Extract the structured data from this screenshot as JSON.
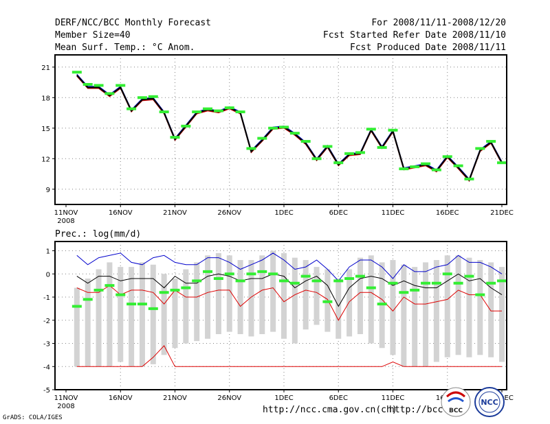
{
  "header": {
    "title": "DERF/NCC/BCC Monthly Forecast",
    "member_size": "Member Size=40",
    "variable": "Mean Surf. Temp.: °C Anom.",
    "period": "For 2008/11/11-2008/12/20",
    "started": "Fcst Started Refer Date 2008/11/10",
    "produced": "Fcst Produced Date 2008/11/11"
  },
  "footer": {
    "grads": "GrADS: COLA/IGES",
    "url1": "http://ncc.cma.gov.cn(ch)",
    "url2": "http://bcc.c"
  },
  "logos": {
    "bcc": "BCC",
    "ncc": "NCC"
  },
  "colors": {
    "grid": "#808080",
    "obs": "#33ee33",
    "upper": "#0000cc",
    "lower": "#dd0000",
    "ens": "#000000",
    "bars": "#d3d3d3"
  },
  "chart_data": [
    {
      "type": "line",
      "title": "Mean Surf. Temp.: °C Anom.",
      "x_tick_labels": [
        "11NOV",
        "16NOV",
        "21NOV",
        "26NOV",
        "1DEC",
        "6DEC",
        "11DEC",
        "16DEC",
        "21DEC"
      ],
      "x_year_label": "2008",
      "y_ticks": [
        9,
        12,
        15,
        18,
        21
      ],
      "ylim": [
        7.5,
        22.2
      ],
      "x_days": 40,
      "series": [
        {
          "name": "upper",
          "values": [
            20.3,
            19.1,
            19.1,
            18.3,
            19.1,
            16.8,
            17.9,
            18.0,
            16.6,
            14.0,
            15.3,
            16.6,
            16.9,
            16.7,
            17.1,
            16.6,
            12.8,
            13.9,
            15.1,
            15.2,
            14.5,
            13.6,
            12.0,
            13.3,
            11.5,
            12.5,
            12.6,
            14.9,
            13.2,
            14.8,
            11.1,
            11.3,
            11.5,
            10.9,
            12.3,
            11.2,
            10.0,
            12.9,
            13.7,
            11.7
          ]
        },
        {
          "name": "lower",
          "values": [
            20.1,
            18.9,
            18.9,
            18.1,
            18.9,
            16.6,
            17.7,
            17.8,
            16.4,
            13.8,
            15.1,
            16.4,
            16.7,
            16.5,
            16.9,
            16.4,
            12.6,
            13.7,
            14.9,
            15.0,
            14.3,
            13.4,
            11.8,
            13.1,
            11.3,
            12.3,
            12.4,
            14.7,
            13.0,
            14.6,
            10.9,
            11.1,
            11.3,
            10.7,
            12.1,
            11.0,
            9.8,
            12.7,
            13.5,
            11.5
          ]
        },
        {
          "name": "ensemble-mean",
          "values": [
            20.2,
            19.0,
            19.0,
            18.2,
            19.0,
            16.7,
            17.8,
            17.9,
            16.5,
            13.9,
            15.2,
            16.5,
            16.8,
            16.6,
            17.0,
            16.5,
            12.7,
            13.8,
            15.0,
            15.1,
            14.4,
            13.5,
            11.9,
            13.2,
            11.4,
            12.4,
            12.5,
            14.8,
            13.1,
            14.7,
            11.0,
            11.2,
            11.4,
            10.8,
            12.2,
            11.1,
            9.9,
            12.8,
            13.6,
            11.6
          ]
        },
        {
          "name": "observed",
          "values": [
            20.5,
            19.3,
            19.2,
            18.4,
            19.2,
            16.9,
            18.0,
            18.1,
            16.6,
            14.1,
            15.2,
            16.6,
            16.9,
            16.7,
            17.0,
            16.6,
            13.0,
            14.0,
            15.0,
            15.1,
            14.5,
            13.7,
            12.0,
            13.2,
            11.6,
            12.5,
            12.6,
            14.9,
            13.1,
            14.8,
            11.0,
            11.2,
            11.5,
            10.9,
            12.2,
            11.3,
            10.0,
            13.0,
            13.7,
            11.6
          ]
        }
      ]
    },
    {
      "type": "line",
      "title": "Prec.: log(mm/d)",
      "x_tick_labels": [
        "11NOV",
        "16NOV",
        "21NOV",
        "26NOV",
        "1DEC",
        "6DEC",
        "11DEC",
        "16DEC",
        "21DEC"
      ],
      "x_year_label": "2008",
      "y_ticks": [
        -5,
        -4,
        -3,
        -2,
        -1,
        0,
        1
      ],
      "ylim": [
        -5,
        1.4
      ],
      "x_days": 40,
      "range_bars": {
        "min": [
          -4,
          -4,
          -4,
          -4,
          -3.8,
          -4,
          -4,
          -3.9,
          -3.5,
          -3.2,
          -3,
          -2.9,
          -2.8,
          -2.6,
          -2.5,
          -2.6,
          -2.7,
          -2.6,
          -2.5,
          -2.8,
          -3,
          -2.4,
          -2.2,
          -2.5,
          -2.8,
          -2.7,
          -2.6,
          -3,
          -3.2,
          -3.5,
          -4,
          -4,
          -4,
          -3.8,
          -3.6,
          -3.5,
          -3.6,
          -3.5,
          -3.6,
          -3.8
        ],
        "max": [
          -0.6,
          -0.2,
          0.2,
          0.5,
          0.3,
          0.3,
          0.5,
          0.4,
          0,
          -0.2,
          0.2,
          0.5,
          0.8,
          0.9,
          0.8,
          0.6,
          0.6,
          0.8,
          1,
          0.9,
          0.7,
          0.6,
          0.3,
          0.2,
          -0.2,
          0.2,
          0.7,
          0.8,
          0.5,
          0.6,
          0.4,
          0.3,
          0.5,
          0.6,
          0.8,
          0.8,
          0.7,
          0.6,
          0.5,
          0.3
        ]
      },
      "series": [
        {
          "name": "upper",
          "values": [
            0.8,
            0.4,
            0.7,
            0.8,
            0.9,
            0.5,
            0.4,
            0.7,
            0.8,
            0.5,
            0.4,
            0.4,
            0.7,
            0.7,
            0.5,
            0.2,
            0.4,
            0.6,
            0.9,
            0.6,
            0.2,
            0.3,
            0.6,
            0.2,
            -0.3,
            0.3,
            0.6,
            0.6,
            0.3,
            -0.2,
            0.4,
            0.1,
            0.1,
            0.3,
            0.4,
            0.8,
            0.5,
            0.5,
            0.3,
            0
          ]
        },
        {
          "name": "ensemble-mean",
          "values": [
            -0.1,
            -0.4,
            -0.1,
            -0.1,
            -0.3,
            -0.2,
            -0.2,
            -0.2,
            -0.6,
            -0.1,
            -0.4,
            -0.4,
            -0.1,
            0,
            -0.1,
            -0.3,
            -0.2,
            -0.2,
            0,
            -0.1,
            -0.6,
            -0.3,
            -0.1,
            -0.5,
            -1.4,
            -0.6,
            -0.2,
            -0.1,
            -0.2,
            -0.5,
            -0.3,
            -0.5,
            -0.6,
            -0.6,
            -0.3,
            0,
            -0.3,
            -0.2,
            -0.6,
            -0.9
          ]
        },
        {
          "name": "lower",
          "values": [
            -0.6,
            -0.8,
            -0.8,
            -0.5,
            -0.9,
            -0.7,
            -0.7,
            -0.8,
            -1.3,
            -0.7,
            -1,
            -1,
            -0.8,
            -0.7,
            -0.7,
            -1.4,
            -1,
            -0.7,
            -0.6,
            -1.2,
            -0.9,
            -0.7,
            -0.8,
            -1.1,
            -2,
            -1.2,
            -0.8,
            -0.8,
            -1.1,
            -1.6,
            -1,
            -1.3,
            -1.3,
            -1.2,
            -1.1,
            -0.7,
            -0.9,
            -0.9,
            -1.6,
            -1.6
          ]
        },
        {
          "name": "lower-extreme",
          "values": [
            -4,
            -4,
            -4,
            -4,
            -4,
            -4,
            -4,
            -3.6,
            -3.1,
            -4,
            -4,
            -4,
            -4,
            -4,
            -4,
            -4,
            -4,
            -4,
            -4,
            -4,
            -4,
            -4,
            -4,
            -4,
            -4,
            -4,
            -4,
            -4,
            -4,
            -3.8,
            -4,
            -4,
            -4,
            -4,
            -4,
            -4,
            -4,
            -4,
            -4,
            -4
          ]
        },
        {
          "name": "observed",
          "values": [
            -1.4,
            -1.1,
            -0.7,
            -0.5,
            -0.9,
            -1.3,
            -1.3,
            -1.5,
            -0.8,
            -0.7,
            -0.6,
            -0.3,
            0.1,
            -0.2,
            0,
            -0.3,
            0,
            0.1,
            0,
            -0.3,
            -0.4,
            -0.1,
            -0.3,
            -1.2,
            -0.3,
            -0.2,
            -0.1,
            -0.6,
            -1.3,
            -0.4,
            -0.8,
            -0.7,
            -0.4,
            -0.4,
            0,
            -0.4,
            -0.1,
            -0.9,
            -0.4,
            -0.3
          ]
        }
      ]
    }
  ]
}
